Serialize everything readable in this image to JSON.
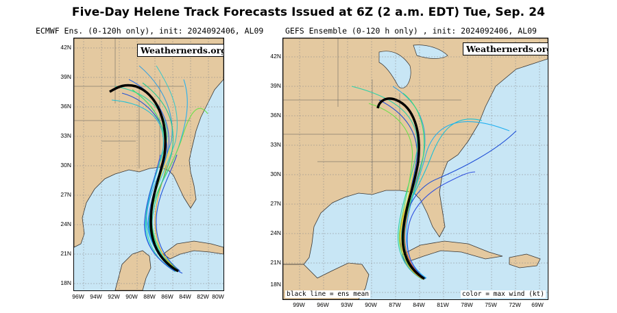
{
  "title": "Five-Day Helene Track Forecasts Issued at 6Z (2 a.m. EDT) Tue, Sep. 24",
  "colors": {
    "ocean": "#c8e6f5",
    "land": "#e4c9a0",
    "mean_track": "#000000",
    "border": "#000000"
  },
  "panels": [
    {
      "subtitle": "ECMWF Ens. (0-120h only), init: 2024092406, AL09",
      "badge": "Weathernerds.org",
      "lat_labels": [
        "42N",
        "39N",
        "36N",
        "33N",
        "30N",
        "27N",
        "24N",
        "21N",
        "18N"
      ],
      "lon_labels": [
        "96W",
        "94W",
        "92W",
        "90W",
        "88W",
        "86W",
        "84W",
        "82W",
        "80W"
      ],
      "footer_left": "",
      "footer_right": ""
    },
    {
      "subtitle": "GEFS Ensemble (0-120 h only) , init: 2024092406, AL09",
      "badge": "Weathernerds.org",
      "lat_labels": [
        "42N",
        "39N",
        "36N",
        "33N",
        "30N",
        "27N",
        "24N",
        "21N",
        "18N"
      ],
      "lon_labels": [
        "99W",
        "96W",
        "93W",
        "90W",
        "87W",
        "84W",
        "81W",
        "78W",
        "75W",
        "72W",
        "69W"
      ],
      "footer_left": "black line = ens mean",
      "footer_right": "color = max wind (kt)"
    }
  ]
}
